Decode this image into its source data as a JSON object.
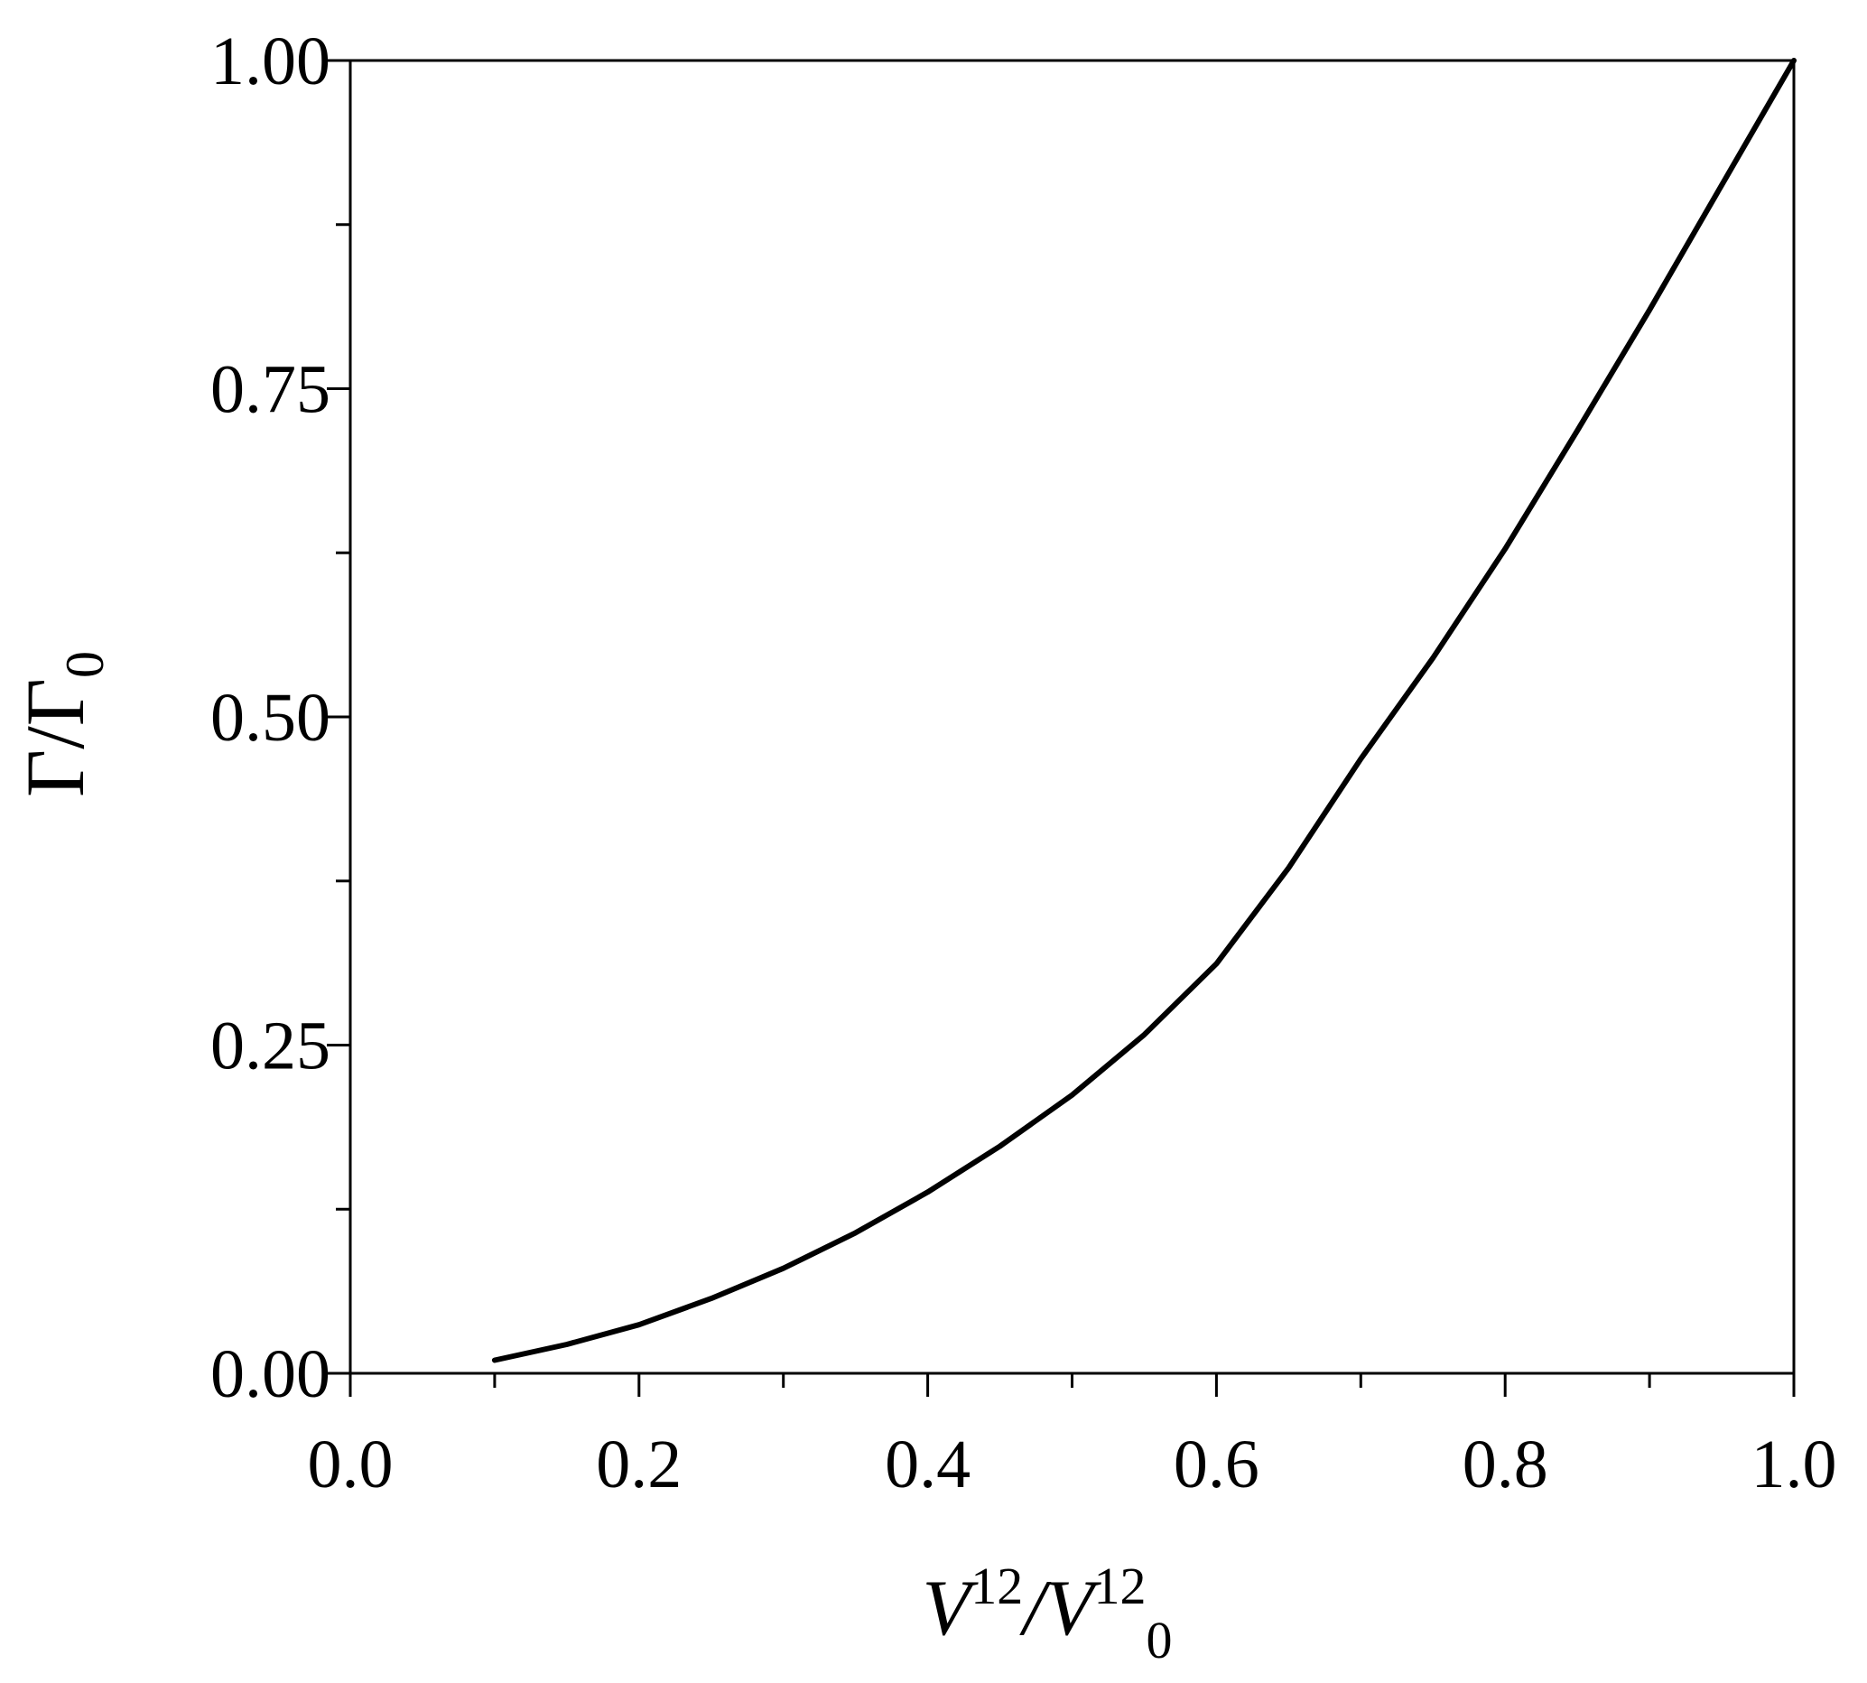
{
  "chart_data": {
    "type": "line",
    "title": "",
    "xlabel": {
      "main": "V",
      "sup1": "12",
      "slash": "/V",
      "sup2": "12",
      "sub": "0"
    },
    "ylabel": {
      "main": "Γ/Γ",
      "sub": "0"
    },
    "xlim": [
      0.0,
      1.0
    ],
    "ylim": [
      0.0,
      1.0
    ],
    "x_ticks": [
      "0.0",
      "0.2",
      "0.4",
      "0.6",
      "0.8",
      "1.0"
    ],
    "y_ticks": [
      "0.00",
      "0.25",
      "0.50",
      "0.75",
      "1.00"
    ],
    "grid": false,
    "series": [
      {
        "color": "#000000",
        "x": [
          0.1,
          0.15,
          0.2,
          0.25,
          0.3,
          0.35,
          0.4,
          0.45,
          0.5,
          0.55,
          0.6,
          0.65,
          0.7,
          0.75,
          0.8,
          0.85,
          0.9,
          0.95,
          1.0
        ],
        "y": [
          0.01,
          0.022,
          0.037,
          0.057,
          0.08,
          0.107,
          0.138,
          0.173,
          0.212,
          0.258,
          0.312,
          0.385,
          0.468,
          0.545,
          0.628,
          0.718,
          0.81,
          0.905,
          1.0
        ]
      }
    ]
  }
}
